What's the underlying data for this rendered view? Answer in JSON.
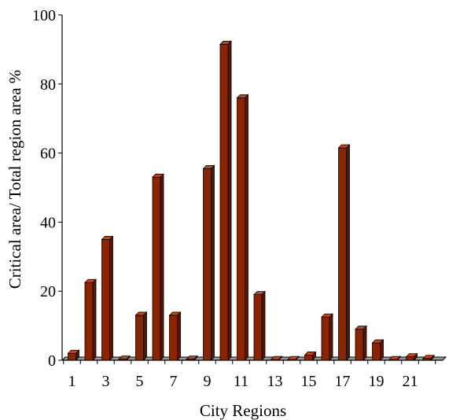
{
  "chart_data": {
    "type": "bar",
    "xlabel": "City Regions",
    "ylabel": "Critical area/ Total region area %",
    "ylim": [
      0,
      100
    ],
    "yticks": [
      0,
      20,
      40,
      60,
      80,
      100
    ],
    "categories": [
      "1",
      "2",
      "3",
      "4",
      "5",
      "6",
      "7",
      "8",
      "9",
      "10",
      "11",
      "12",
      "13",
      "14",
      "15",
      "16",
      "17",
      "18",
      "19",
      "20",
      "21",
      "22"
    ],
    "x_tick_labels": [
      "1",
      "3",
      "5",
      "7",
      "9",
      "11",
      "13",
      "15",
      "17",
      "19",
      "21"
    ],
    "values": [
      2,
      22.5,
      35,
      0.3,
      13,
      53,
      13,
      0.3,
      55.5,
      91.5,
      76,
      19,
      0.2,
      0.2,
      1.5,
      12.5,
      61.5,
      9,
      5,
      0.2,
      1,
      0.5
    ],
    "grid": false,
    "legend": "none",
    "style": "3d",
    "colors": {
      "bar_front": "#8B2500",
      "bar_top": "#C2461C",
      "bar_side": "#5A1500",
      "floor": "#9A9A9A",
      "axis": "#000000"
    }
  }
}
